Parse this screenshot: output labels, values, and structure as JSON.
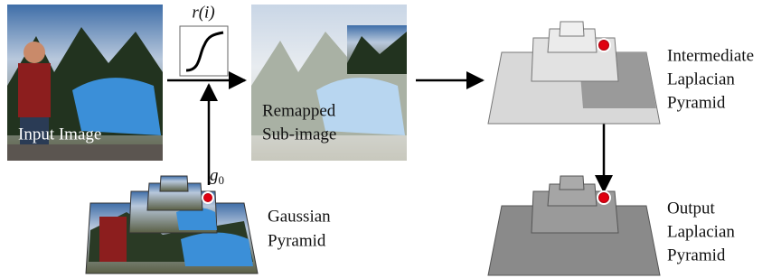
{
  "labels": {
    "function": "r(i)",
    "input": "Input Image",
    "remapped": [
      "Remapped",
      "Sub-image"
    ],
    "g0": {
      "base": "g",
      "sub": "0"
    },
    "gaussian": [
      "Gaussian",
      "Pyramid"
    ],
    "intermediate": [
      "Intermediate",
      "Laplacian",
      "Pyramid"
    ],
    "output": [
      "Output",
      "Laplacian",
      "Pyramid"
    ]
  }
}
